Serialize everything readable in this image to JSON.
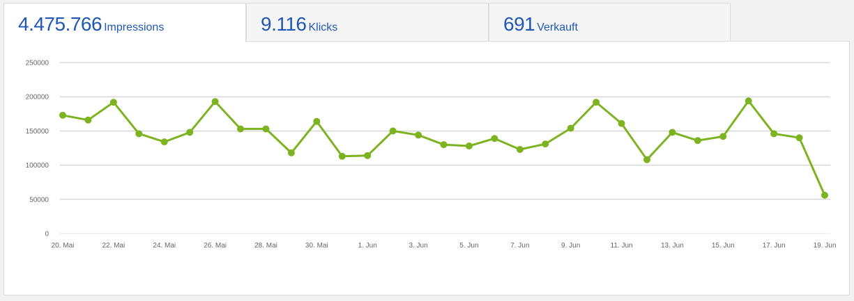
{
  "tabs": [
    {
      "value": "4.475.766",
      "label": "Impressions",
      "active": true
    },
    {
      "value": "9.116",
      "label": "Klicks",
      "active": false
    },
    {
      "value": "691",
      "label": "Verkauft",
      "active": false
    }
  ],
  "colors": {
    "accent": "#1f57b4",
    "series": "#7db321",
    "grid": "#c8c8c8"
  },
  "chart_data": {
    "type": "line",
    "title": "",
    "xlabel": "",
    "ylabel": "",
    "ylim": [
      0,
      250000
    ],
    "yticks": [
      0,
      50000,
      100000,
      150000,
      200000,
      250000
    ],
    "ytick_labels": [
      "0",
      "50000",
      "100000",
      "150000",
      "200000",
      "250000"
    ],
    "x": [
      "20. Mai",
      "21. Mai",
      "22. Mai",
      "23. Mai",
      "24. Mai",
      "25. Mai",
      "26. Mai",
      "27. Mai",
      "28. Mai",
      "29. Mai",
      "30. Mai",
      "31. Mai",
      "1. Jun",
      "2. Jun",
      "3. Jun",
      "4. Jun",
      "5. Jun",
      "6. Jun",
      "7. Jun",
      "8. Jun",
      "9. Jun",
      "10. Jun",
      "11. Jun",
      "12. Jun",
      "13. Jun",
      "14. Jun",
      "15. Jun",
      "16. Jun",
      "17. Jun",
      "18. Jun",
      "19. Jun"
    ],
    "xtick_labels": [
      "20. Mai",
      "22. Mai",
      "24. Mai",
      "26. Mai",
      "28. Mai",
      "30. Mai",
      "1. Jun",
      "3. Jun",
      "5. Jun",
      "7. Jun",
      "9. Jun",
      "11. Jun",
      "13. Jun",
      "15. Jun",
      "17. Jun",
      "19. Jun"
    ],
    "grid": true,
    "legend": "none",
    "series": [
      {
        "values": [
          173000,
          166000,
          192000,
          146000,
          134000,
          148000,
          193000,
          153000,
          153000,
          118000,
          164000,
          113000,
          114000,
          150000,
          144000,
          130000,
          128000,
          139000,
          123000,
          131000,
          154000,
          192000,
          161000,
          108000,
          148000,
          136000,
          142000,
          194000,
          146000,
          140000,
          56000
        ]
      }
    ]
  }
}
